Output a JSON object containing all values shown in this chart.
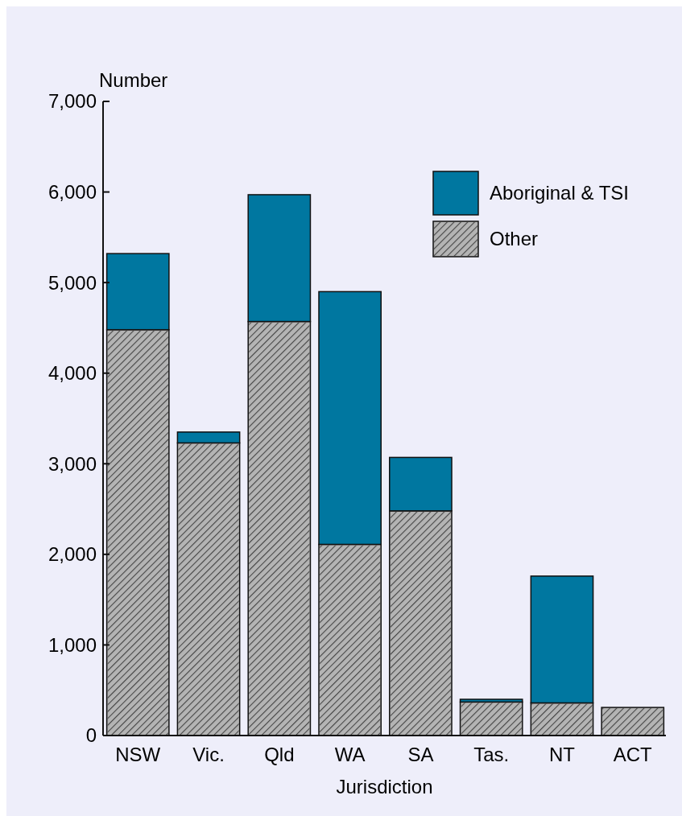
{
  "chart_data": {
    "type": "bar",
    "stacked": true,
    "xlabel": "Jurisdiction",
    "ylabel": "Number",
    "categories": [
      "NSW",
      "Vic.",
      "Qld",
      "WA",
      "SA",
      "Tas.",
      "NT",
      "ACT"
    ],
    "series": [
      {
        "name": "Other",
        "color": "#b4b4b4",
        "values": [
          4480,
          3230,
          4570,
          2110,
          2480,
          370,
          360,
          310
        ]
      },
      {
        "name": "Aboriginal & TSI",
        "color": "#0077a0",
        "values": [
          840,
          120,
          1400,
          2790,
          590,
          30,
          1400,
          0
        ]
      }
    ],
    "ylim": [
      0,
      7000
    ],
    "yticks": [
      {
        "value": 0,
        "label": "0"
      },
      {
        "value": 1000,
        "label": "1,000"
      },
      {
        "value": 2000,
        "label": "2,000"
      },
      {
        "value": 3000,
        "label": "3,000"
      },
      {
        "value": 4000,
        "label": "4,000"
      },
      {
        "value": 5000,
        "label": "5,000"
      },
      {
        "value": 6000,
        "label": "6,000"
      },
      {
        "value": 7000,
        "label": "7,000"
      }
    ],
    "legend": "top right"
  }
}
